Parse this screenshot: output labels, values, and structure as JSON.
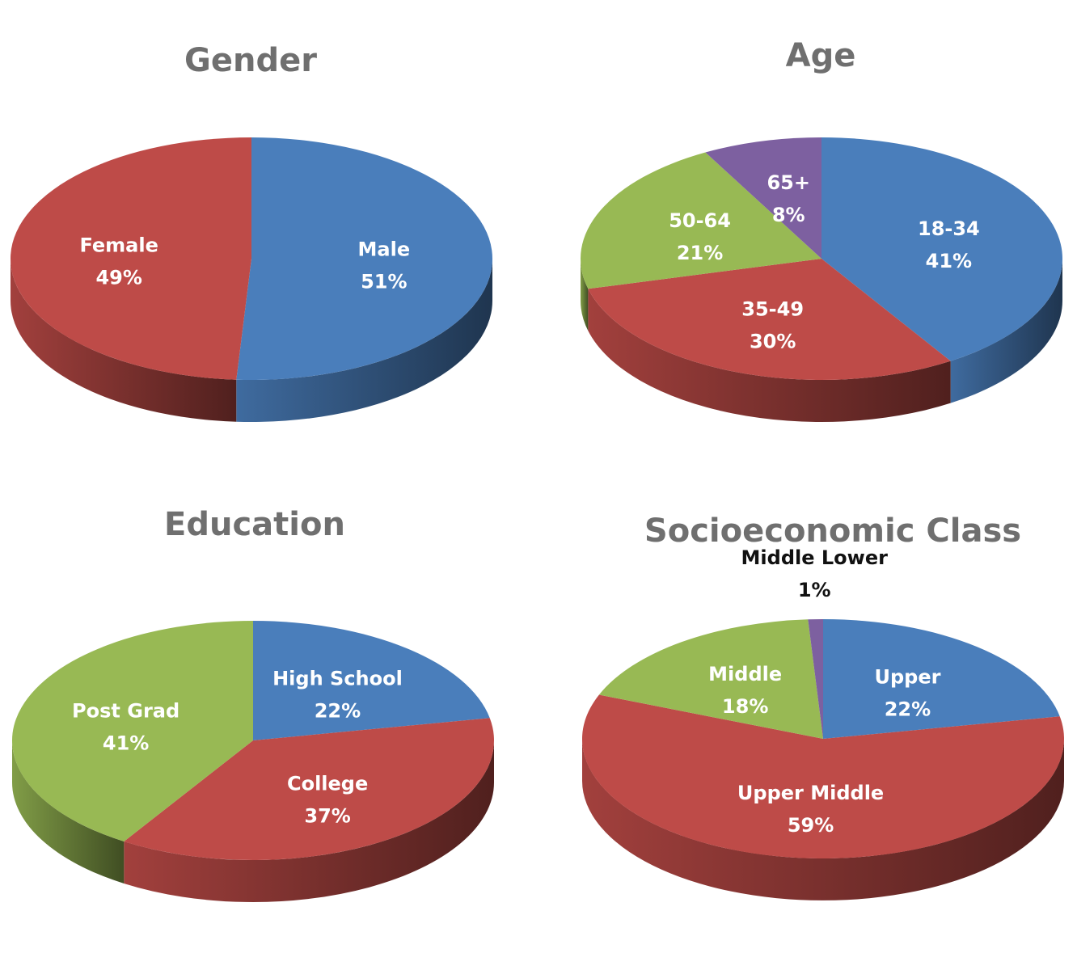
{
  "chart_data": [
    {
      "type": "pie",
      "title": "Gender",
      "slices": [
        {
          "label": "Male",
          "value": 51,
          "value_label": "51%",
          "color": "#4a7ebb"
        },
        {
          "label": "Female",
          "value": 49,
          "value_label": "49%",
          "color": "#be4b48"
        }
      ]
    },
    {
      "type": "pie",
      "title": "Age",
      "slices": [
        {
          "label": "18-34",
          "value": 41,
          "value_label": "41%",
          "color": "#4a7ebb"
        },
        {
          "label": "35-49",
          "value": 30,
          "value_label": "30%",
          "color": "#be4b48"
        },
        {
          "label": "50-64",
          "value": 21,
          "value_label": "21%",
          "color": "#98b954"
        },
        {
          "label": "65+",
          "value": 8,
          "value_label": "8%",
          "color": "#7d60a0"
        }
      ]
    },
    {
      "type": "pie",
      "title": "Education",
      "slices": [
        {
          "label": "High School",
          "value": 22,
          "value_label": "22%",
          "color": "#4a7ebb"
        },
        {
          "label": "College",
          "value": 37,
          "value_label": "37%",
          "color": "#be4b48"
        },
        {
          "label": "Post Grad",
          "value": 41,
          "value_label": "41%",
          "color": "#98b954"
        }
      ]
    },
    {
      "type": "pie",
      "title": "Socioeconomic Class",
      "slices": [
        {
          "label": "Upper",
          "value": 22,
          "value_label": "22%",
          "color": "#4a7ebb"
        },
        {
          "label": "Upper Middle",
          "value": 59,
          "value_label": "59%",
          "color": "#be4b48"
        },
        {
          "label": "Middle",
          "value": 18,
          "value_label": "18%",
          "color": "#98b954"
        },
        {
          "label": "Middle Lower",
          "value": 1,
          "value_label": "1%",
          "color": "#7d60a0",
          "label_outside": true
        }
      ]
    }
  ]
}
